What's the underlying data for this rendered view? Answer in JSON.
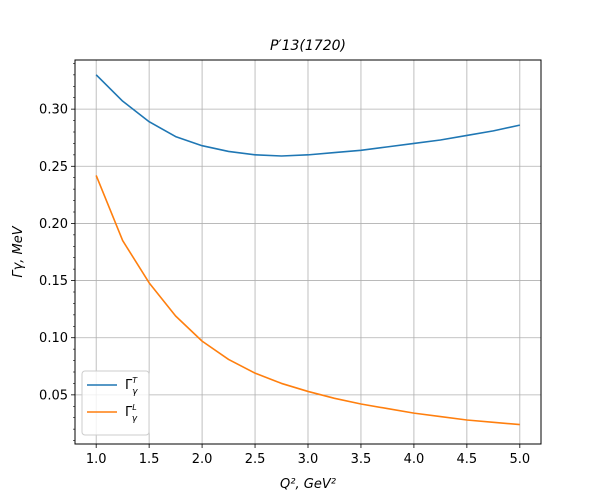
{
  "chart_data": {
    "type": "line",
    "title": "P′13(1720)",
    "xlabel": "Q², GeV²",
    "ylabel": "Γγ,  MeV",
    "xlim": [
      0.8,
      5.2
    ],
    "ylim": [
      0.007,
      0.343
    ],
    "xticks": [
      1.0,
      1.5,
      2.0,
      2.5,
      3.0,
      3.5,
      4.0,
      4.5,
      5.0
    ],
    "yticks": [
      0.05,
      0.1,
      0.15,
      0.2,
      0.25,
      0.3
    ],
    "grid": true,
    "legend_position": "lower-left",
    "x": [
      1.0,
      1.25,
      1.5,
      1.75,
      2.0,
      2.25,
      2.5,
      2.75,
      3.0,
      3.25,
      3.5,
      3.75,
      4.0,
      4.25,
      4.5,
      4.75,
      5.0
    ],
    "series": [
      {
        "name": "Γγ^T",
        "legend_main": "Γ",
        "legend_sub": "γ",
        "legend_sup": "T",
        "color": "#1f77b4",
        "values": [
          0.33,
          0.307,
          0.289,
          0.276,
          0.268,
          0.263,
          0.26,
          0.259,
          0.26,
          0.262,
          0.264,
          0.267,
          0.27,
          0.273,
          0.277,
          0.281,
          0.286
        ]
      },
      {
        "name": "Γγ^L",
        "legend_main": "Γ",
        "legend_sub": "γ",
        "legend_sup": "L",
        "color": "#ff7f0e",
        "values": [
          0.242,
          0.185,
          0.148,
          0.119,
          0.097,
          0.081,
          0.069,
          0.06,
          0.053,
          0.047,
          0.042,
          0.038,
          0.034,
          0.031,
          0.028,
          0.026,
          0.024
        ]
      }
    ]
  }
}
